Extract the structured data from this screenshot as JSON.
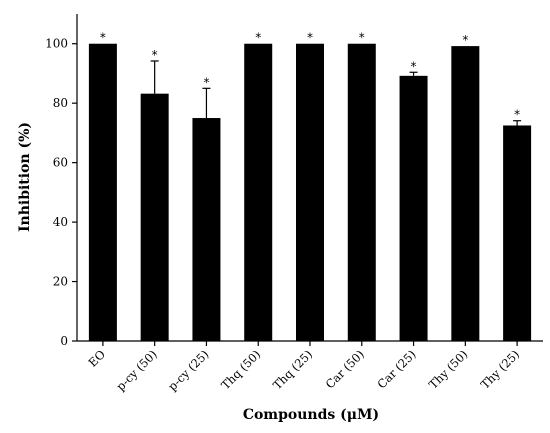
{
  "chart_data": {
    "type": "bar",
    "xlabel": "Compounds (μM)",
    "ylabel": "Inhibition (%)",
    "ylim": [
      0,
      110
    ],
    "yticks": [
      0,
      20,
      40,
      60,
      80,
      100
    ],
    "categories": [
      "EO",
      "p-cy (50)",
      "p-cy (25)",
      "Thq (50)",
      "Thq (25)",
      "Car (50)",
      "Car (25)",
      "Thy (50)",
      "Thy (25)"
    ],
    "values": [
      100,
      83.2,
      75,
      100,
      100,
      100,
      89.2,
      99.2,
      72.5
    ],
    "error": [
      0,
      11,
      10,
      0,
      0,
      0,
      1.2,
      0,
      1.6
    ],
    "significance": [
      "*",
      "*",
      "*",
      "*",
      "*",
      "*",
      "*",
      "*",
      "*"
    ],
    "bar_color": "#000000",
    "grid": false,
    "legend": "none"
  }
}
